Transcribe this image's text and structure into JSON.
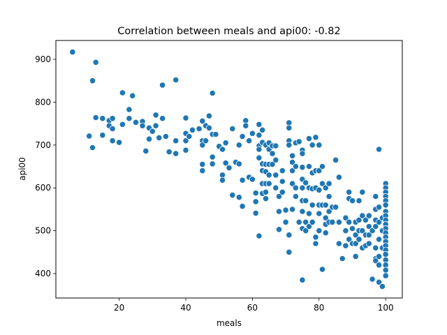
{
  "chart_data": {
    "type": "scatter",
    "title": "Correlation between meals and api00: -0.82",
    "xlabel": "meals",
    "ylabel": "api00",
    "xlim": [
      1,
      105
    ],
    "ylim": [
      343,
      944
    ],
    "xticks": [
      20,
      40,
      60,
      80,
      100
    ],
    "yticks": [
      400,
      500,
      600,
      700,
      800,
      900
    ],
    "grid": false,
    "marker_color": "#1f77b4",
    "points": [
      [
        6,
        917
      ],
      [
        12,
        850
      ],
      [
        13,
        893
      ],
      [
        11,
        721
      ],
      [
        12,
        694
      ],
      [
        13,
        764
      ],
      [
        15,
        762
      ],
      [
        15,
        723
      ],
      [
        17,
        757
      ],
      [
        17,
        745
      ],
      [
        18,
        762
      ],
      [
        18,
        738
      ],
      [
        18,
        710
      ],
      [
        20,
        706
      ],
      [
        21,
        822
      ],
      [
        21,
        748
      ],
      [
        23,
        783
      ],
      [
        23,
        762
      ],
      [
        24,
        815
      ],
      [
        25,
        753
      ],
      [
        27,
        755
      ],
      [
        27,
        745
      ],
      [
        28,
        686
      ],
      [
        29,
        740
      ],
      [
        30,
        732
      ],
      [
        29,
        714
      ],
      [
        31,
        770
      ],
      [
        31,
        745
      ],
      [
        32,
        717
      ],
      [
        33,
        840
      ],
      [
        33,
        762
      ],
      [
        34,
        720
      ],
      [
        35,
        684
      ],
      [
        37,
        852
      ],
      [
        37,
        680
      ],
      [
        37,
        710
      ],
      [
        40,
        763
      ],
      [
        40,
        727
      ],
      [
        40,
        710
      ],
      [
        40,
        688
      ],
      [
        41,
        720
      ],
      [
        42,
        735
      ],
      [
        44,
        738
      ],
      [
        45,
        756
      ],
      [
        45,
        710
      ],
      [
        45,
        700
      ],
      [
        46,
        745
      ],
      [
        47,
        768
      ],
      [
        47,
        740
      ],
      [
        45,
        655
      ],
      [
        45,
        640
      ],
      [
        46,
        710
      ],
      [
        48,
        821
      ],
      [
        48,
        725
      ],
      [
        48,
        672
      ],
      [
        48,
        656
      ],
      [
        49,
        725
      ],
      [
        50,
        697
      ],
      [
        51,
        690
      ],
      [
        51,
        630
      ],
      [
        51,
        618
      ],
      [
        52,
        705
      ],
      [
        52,
        658
      ],
      [
        53,
        647
      ],
      [
        54,
        738
      ],
      [
        54,
        583
      ],
      [
        55,
        660
      ],
      [
        56,
        700
      ],
      [
        56,
        656
      ],
      [
        56,
        578
      ],
      [
        57,
        720
      ],
      [
        57,
        618
      ],
      [
        57,
        557
      ],
      [
        58,
        757
      ],
      [
        58,
        745
      ],
      [
        59,
        710
      ],
      [
        59,
        625
      ],
      [
        60,
        727
      ],
      [
        60,
        620
      ],
      [
        61,
        588
      ],
      [
        61,
        568
      ],
      [
        61,
        541
      ],
      [
        62,
        748
      ],
      [
        62,
        723
      ],
      [
        62,
        698
      ],
      [
        62,
        690
      ],
      [
        62,
        670
      ],
      [
        62,
        488
      ],
      [
        63,
        735
      ],
      [
        63,
        706
      ],
      [
        63,
        656
      ],
      [
        63,
        640
      ],
      [
        63,
        610
      ],
      [
        63,
        587
      ],
      [
        64,
        700
      ],
      [
        64,
        655
      ],
      [
        64,
        638
      ],
      [
        64,
        610
      ],
      [
        64,
        590
      ],
      [
        64,
        575
      ],
      [
        65,
        705
      ],
      [
        65,
        690
      ],
      [
        65,
        655
      ],
      [
        65,
        630
      ],
      [
        65,
        610
      ],
      [
        66,
        698
      ],
      [
        66,
        680
      ],
      [
        66,
        655
      ],
      [
        67,
        698
      ],
      [
        67,
        665
      ],
      [
        67,
        630
      ],
      [
        67,
        600
      ],
      [
        68,
        580
      ],
      [
        68,
        545
      ],
      [
        68,
        503
      ],
      [
        69,
        640
      ],
      [
        69,
        615
      ],
      [
        69,
        590
      ],
      [
        70,
        548
      ],
      [
        70,
        520
      ],
      [
        71,
        752
      ],
      [
        71,
        740
      ],
      [
        71,
        710
      ],
      [
        71,
        700
      ],
      [
        71,
        490
      ],
      [
        71,
        450
      ],
      [
        72,
        675
      ],
      [
        72,
        660
      ],
      [
        72,
        640
      ],
      [
        72,
        610
      ],
      [
        72,
        550
      ],
      [
        73,
        705
      ],
      [
        73,
        650
      ],
      [
        73,
        600
      ],
      [
        73,
        580
      ],
      [
        74,
        708
      ],
      [
        74,
        520
      ],
      [
        75,
        688
      ],
      [
        75,
        680
      ],
      [
        75,
        648
      ],
      [
        75,
        620
      ],
      [
        75,
        600
      ],
      [
        75,
        570
      ],
      [
        75,
        545
      ],
      [
        75,
        505
      ],
      [
        75,
        385
      ],
      [
        76,
        612
      ],
      [
        76,
        570
      ],
      [
        76,
        520
      ],
      [
        76,
        500
      ],
      [
        77,
        715
      ],
      [
        77,
        650
      ],
      [
        77,
        600
      ],
      [
        77,
        540
      ],
      [
        77,
        510
      ],
      [
        78,
        700
      ],
      [
        78,
        635
      ],
      [
        78,
        598
      ],
      [
        78,
        560
      ],
      [
        78,
        520
      ],
      [
        79,
        718
      ],
      [
        79,
        640
      ],
      [
        79,
        600
      ],
      [
        79,
        485
      ],
      [
        79,
        470
      ],
      [
        80,
        700
      ],
      [
        80,
        640
      ],
      [
        80,
        595
      ],
      [
        80,
        560
      ],
      [
        80,
        540
      ],
      [
        80,
        500
      ],
      [
        81,
        650
      ],
      [
        81,
        610
      ],
      [
        81,
        560
      ],
      [
        81,
        410
      ],
      [
        82,
        600
      ],
      [
        82,
        560
      ],
      [
        82,
        530
      ],
      [
        82,
        515
      ],
      [
        82,
        495
      ],
      [
        83,
        610
      ],
      [
        83,
        580
      ],
      [
        83,
        545
      ],
      [
        83,
        520
      ],
      [
        84,
        555
      ],
      [
        84,
        520
      ],
      [
        85,
        665
      ],
      [
        85,
        555
      ],
      [
        86,
        625
      ],
      [
        86,
        520
      ],
      [
        86,
        470
      ],
      [
        87,
        435
      ],
      [
        88,
        530
      ],
      [
        88,
        500
      ],
      [
        88,
        465
      ],
      [
        89,
        590
      ],
      [
        89,
        575
      ],
      [
        89,
        520
      ],
      [
        89,
        480
      ],
      [
        90,
        505
      ],
      [
        90,
        470
      ],
      [
        90,
        570
      ],
      [
        91,
        520
      ],
      [
        91,
        490
      ],
      [
        91,
        470
      ],
      [
        91,
        440
      ],
      [
        92,
        570
      ],
      [
        92,
        525
      ],
      [
        92,
        500
      ],
      [
        92,
        480
      ],
      [
        93,
        590
      ],
      [
        93,
        535
      ],
      [
        93,
        500
      ],
      [
        93,
        460
      ],
      [
        94,
        525
      ],
      [
        94,
        490
      ],
      [
        94,
        465
      ],
      [
        95,
        535
      ],
      [
        95,
        510
      ],
      [
        95,
        490
      ],
      [
        95,
        470
      ],
      [
        96,
        500
      ],
      [
        96,
        387
      ],
      [
        97,
        580
      ],
      [
        97,
        550
      ],
      [
        97,
        525
      ],
      [
        97,
        510
      ],
      [
        97,
        460
      ],
      [
        97,
        435
      ],
      [
        97,
        430
      ],
      [
        98,
        690
      ],
      [
        98,
        555
      ],
      [
        98,
        520
      ],
      [
        98,
        480
      ],
      [
        98,
        440
      ],
      [
        98,
        420
      ],
      [
        98,
        380
      ],
      [
        99,
        530
      ],
      [
        99,
        500
      ],
      [
        99,
        460
      ],
      [
        99,
        370
      ],
      [
        100,
        610
      ],
      [
        100,
        600
      ],
      [
        100,
        590
      ],
      [
        100,
        580
      ],
      [
        100,
        570
      ],
      [
        100,
        560
      ],
      [
        100,
        545
      ],
      [
        100,
        535
      ],
      [
        100,
        525
      ],
      [
        100,
        515
      ],
      [
        100,
        505
      ],
      [
        100,
        495
      ],
      [
        100,
        485
      ],
      [
        100,
        475
      ],
      [
        100,
        465
      ],
      [
        100,
        455
      ],
      [
        100,
        445
      ],
      [
        100,
        432
      ],
      [
        100,
        420
      ],
      [
        100,
        408
      ],
      [
        100,
        395
      ]
    ]
  }
}
